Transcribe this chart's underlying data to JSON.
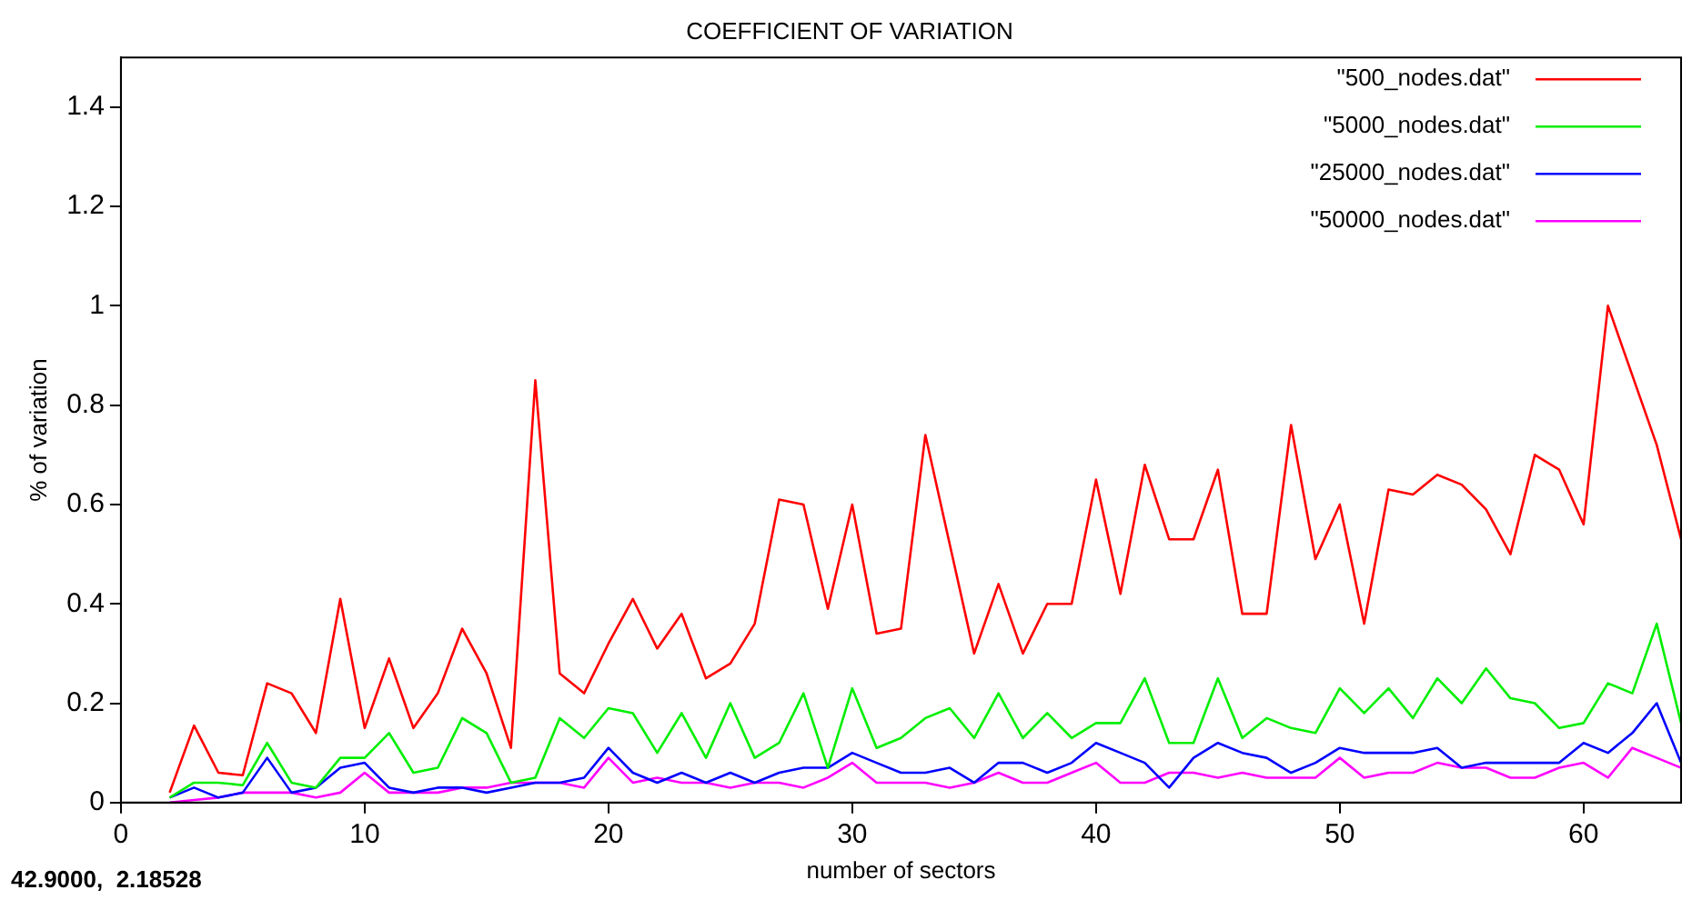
{
  "chart_data": {
    "type": "line",
    "title": "COEFFICIENT OF VARIATION",
    "xlabel": "number of sectors",
    "ylabel": "% of variation",
    "annotations": [
      "42.9000,  2.18528"
    ],
    "x": [
      2,
      3,
      4,
      5,
      6,
      7,
      8,
      9,
      10,
      11,
      12,
      13,
      14,
      15,
      16,
      17,
      18,
      19,
      20,
      21,
      22,
      23,
      24,
      25,
      26,
      27,
      28,
      29,
      30,
      31,
      32,
      33,
      34,
      35,
      36,
      37,
      38,
      39,
      40,
      41,
      42,
      43,
      44,
      45,
      46,
      47,
      48,
      49,
      50,
      51,
      52,
      53,
      54,
      55,
      56,
      57,
      58,
      59,
      60,
      61,
      62,
      63,
      64
    ],
    "series": [
      {
        "name": "\"500_nodes.dat\"",
        "color": "#ff0000",
        "values": [
          0.02,
          0.155,
          0.06,
          0.055,
          0.24,
          0.22,
          0.14,
          0.41,
          0.15,
          0.29,
          0.15,
          0.22,
          0.35,
          0.26,
          0.11,
          0.85,
          0.26,
          0.22,
          0.32,
          0.41,
          0.31,
          0.38,
          0.25,
          0.28,
          0.36,
          0.61,
          0.6,
          0.39,
          0.6,
          0.34,
          0.35,
          0.74,
          0.52,
          0.3,
          0.44,
          0.3,
          0.4,
          0.4,
          0.65,
          0.42,
          0.68,
          0.53,
          0.53,
          0.67,
          0.38,
          0.38,
          0.76,
          0.49,
          0.6,
          0.36,
          0.63,
          0.62,
          0.66,
          0.64,
          0.59,
          0.5,
          0.7,
          0.67,
          0.56,
          1.0,
          0.86,
          0.72,
          0.53
        ]
      },
      {
        "name": "\"5000_nodes.dat\"",
        "color": "#00ee00",
        "values": [
          0.01,
          0.04,
          0.04,
          0.035,
          0.12,
          0.04,
          0.03,
          0.09,
          0.09,
          0.14,
          0.06,
          0.07,
          0.17,
          0.14,
          0.04,
          0.05,
          0.17,
          0.13,
          0.19,
          0.18,
          0.1,
          0.18,
          0.09,
          0.2,
          0.09,
          0.12,
          0.22,
          0.07,
          0.23,
          0.11,
          0.13,
          0.17,
          0.19,
          0.13,
          0.22,
          0.13,
          0.18,
          0.13,
          0.16,
          0.16,
          0.25,
          0.12,
          0.12,
          0.25,
          0.13,
          0.17,
          0.15,
          0.14,
          0.23,
          0.18,
          0.23,
          0.17,
          0.25,
          0.2,
          0.27,
          0.21,
          0.2,
          0.15,
          0.16,
          0.24,
          0.22,
          0.36,
          0.16
        ]
      },
      {
        "name": "\"25000_nodes.dat\"",
        "color": "#0000ff",
        "values": [
          0.01,
          0.03,
          0.01,
          0.02,
          0.09,
          0.02,
          0.03,
          0.07,
          0.08,
          0.03,
          0.02,
          0.03,
          0.03,
          0.02,
          0.03,
          0.04,
          0.04,
          0.05,
          0.11,
          0.06,
          0.04,
          0.06,
          0.04,
          0.06,
          0.04,
          0.06,
          0.07,
          0.07,
          0.1,
          0.08,
          0.06,
          0.06,
          0.07,
          0.04,
          0.08,
          0.08,
          0.06,
          0.08,
          0.12,
          0.1,
          0.08,
          0.03,
          0.09,
          0.12,
          0.1,
          0.09,
          0.06,
          0.08,
          0.11,
          0.1,
          0.1,
          0.1,
          0.11,
          0.07,
          0.08,
          0.08,
          0.08,
          0.08,
          0.12,
          0.1,
          0.14,
          0.2,
          0.08
        ]
      },
      {
        "name": "\"50000_nodes.dat\"",
        "color": "#ff00ff",
        "values": [
          0,
          0.005,
          0.01,
          0.02,
          0.02,
          0.02,
          0.01,
          0.02,
          0.06,
          0.02,
          0.02,
          0.02,
          0.03,
          0.03,
          0.04,
          0.04,
          0.04,
          0.03,
          0.09,
          0.04,
          0.05,
          0.04,
          0.04,
          0.03,
          0.04,
          0.04,
          0.03,
          0.05,
          0.08,
          0.04,
          0.04,
          0.04,
          0.03,
          0.04,
          0.06,
          0.04,
          0.04,
          0.06,
          0.08,
          0.04,
          0.04,
          0.06,
          0.06,
          0.05,
          0.06,
          0.05,
          0.05,
          0.05,
          0.09,
          0.05,
          0.06,
          0.06,
          0.08,
          0.07,
          0.07,
          0.05,
          0.05,
          0.07,
          0.08,
          0.05,
          0.11,
          0.09,
          0.07
        ]
      }
    ],
    "xlim": [
      0,
      64
    ],
    "xticks": [
      0,
      10,
      20,
      30,
      40,
      50,
      60
    ],
    "ylim": [
      0,
      1.5
    ],
    "yticks": [
      0,
      0.2,
      0.4,
      0.6,
      0.8,
      1,
      1.2,
      1.4
    ],
    "legend": "top right"
  }
}
